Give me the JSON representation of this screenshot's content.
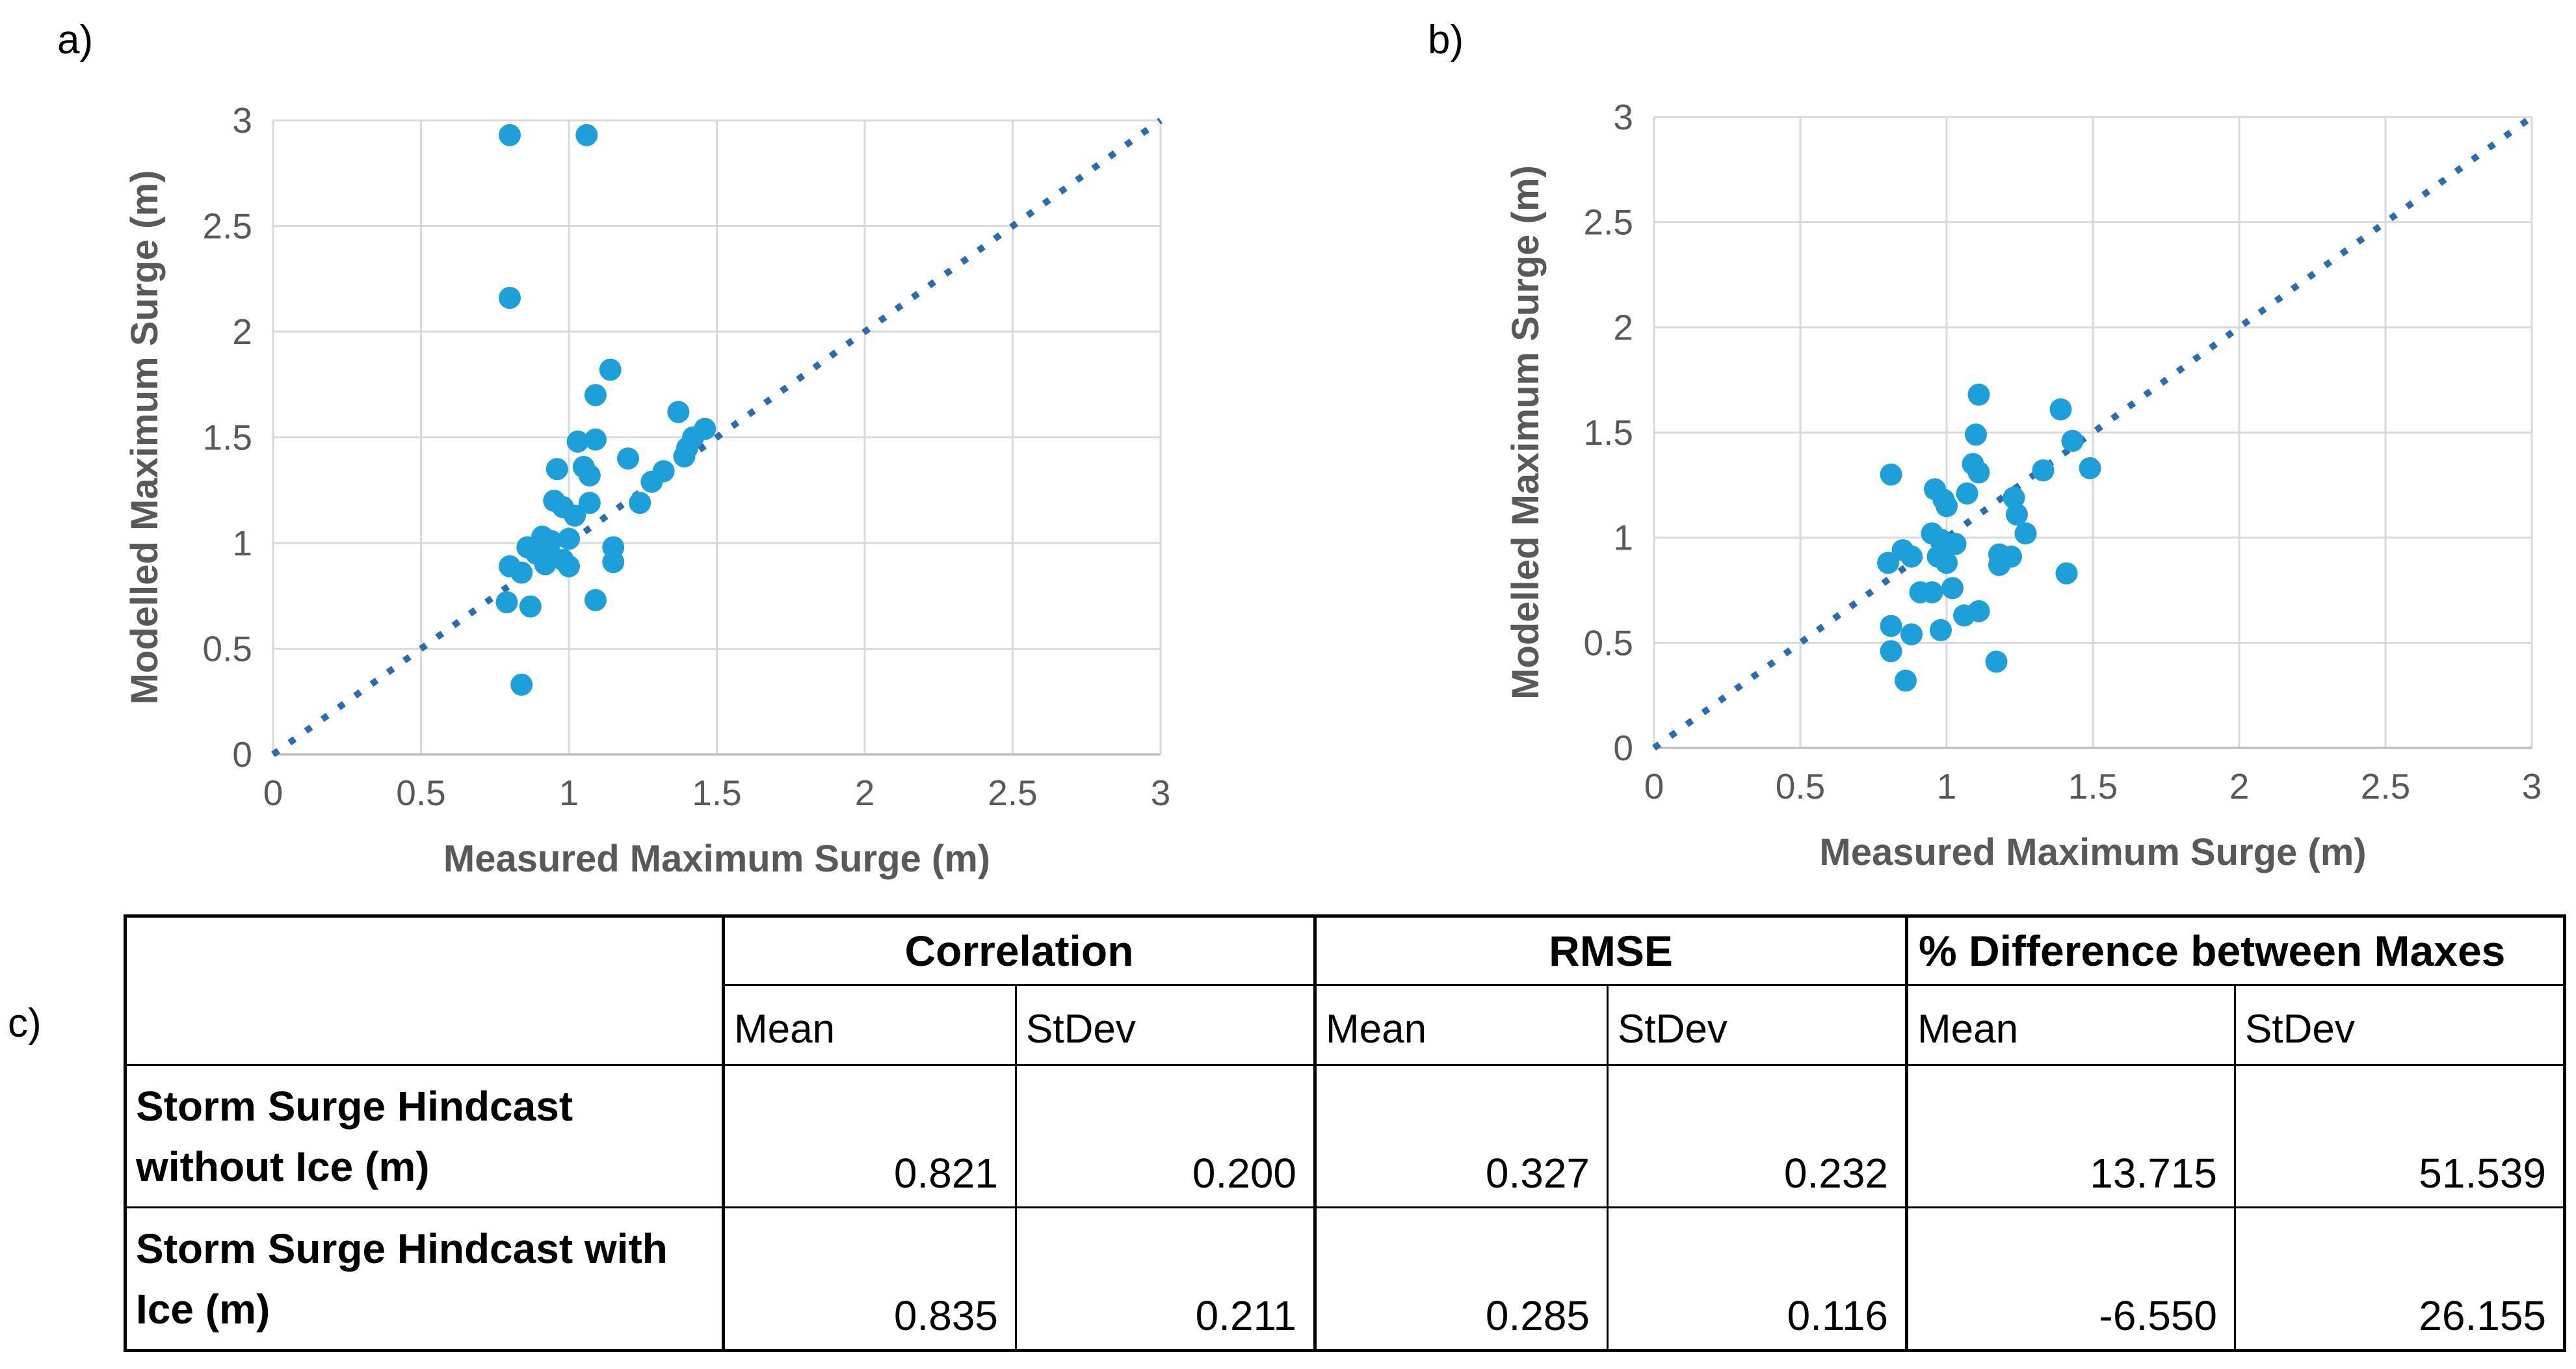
{
  "panels": {
    "a_label": "a)",
    "b_label": "b)",
    "c_label": "c)"
  },
  "chart_data": [
    {
      "id": "a",
      "type": "scatter",
      "title": "",
      "xlabel": "Measured Maximum Surge (m)",
      "ylabel": "Modelled Maximum Surge (m)",
      "xlim": [
        0,
        3
      ],
      "ylim": [
        0,
        3
      ],
      "xticks": [
        0,
        0.5,
        1,
        1.5,
        2,
        2.5,
        3
      ],
      "yticks": [
        0,
        0.5,
        1,
        1.5,
        2,
        2.5,
        3
      ],
      "xtick_labels": [
        "0",
        "0.5",
        "1",
        "1.5",
        "2",
        "2.5",
        "3"
      ],
      "ytick_labels": [
        "0",
        "0.5",
        "1",
        "1.5",
        "2",
        "2.5",
        "3"
      ],
      "grid": true,
      "grid_color": "#D9D9D9",
      "axis_color": "#BFBFBF",
      "marker_color": "#1D9FDA",
      "identity_line": {
        "from": [
          0,
          0
        ],
        "to": [
          3,
          3
        ],
        "style": "dotted",
        "color": "#2A6CB3"
      },
      "points": [
        [
          0.8,
          2.93
        ],
        [
          1.06,
          2.93
        ],
        [
          0.8,
          2.16
        ],
        [
          1.14,
          1.82
        ],
        [
          1.09,
          1.7
        ],
        [
          1.37,
          1.62
        ],
        [
          1.46,
          1.54
        ],
        [
          1.42,
          1.5
        ],
        [
          1.09,
          1.49
        ],
        [
          1.03,
          1.48
        ],
        [
          1.4,
          1.45
        ],
        [
          1.39,
          1.41
        ],
        [
          1.2,
          1.4
        ],
        [
          1.05,
          1.36
        ],
        [
          0.96,
          1.35
        ],
        [
          1.32,
          1.34
        ],
        [
          1.07,
          1.32
        ],
        [
          1.28,
          1.29
        ],
        [
          0.95,
          1.2
        ],
        [
          1.07,
          1.19
        ],
        [
          1.24,
          1.19
        ],
        [
          0.98,
          1.17
        ],
        [
          1.02,
          1.13
        ],
        [
          0.91,
          1.03
        ],
        [
          1.0,
          1.02
        ],
        [
          0.94,
          1.01
        ],
        [
          0.86,
          0.98
        ],
        [
          1.15,
          0.98
        ],
        [
          0.89,
          0.95
        ],
        [
          0.94,
          0.94
        ],
        [
          0.98,
          0.92
        ],
        [
          1.15,
          0.91
        ],
        [
          0.92,
          0.9
        ],
        [
          0.8,
          0.89
        ],
        [
          1.0,
          0.89
        ],
        [
          0.84,
          0.86
        ],
        [
          1.09,
          0.73
        ],
        [
          0.79,
          0.72
        ],
        [
          0.87,
          0.7
        ],
        [
          0.84,
          0.33
        ]
      ]
    },
    {
      "id": "b",
      "type": "scatter",
      "title": "",
      "xlabel": "Measured Maximum Surge (m)",
      "ylabel": "Modelled Maximum Surge (m)",
      "xlim": [
        0,
        3
      ],
      "ylim": [
        0,
        3
      ],
      "xticks": [
        0,
        0.5,
        1,
        1.5,
        2,
        2.5,
        3
      ],
      "yticks": [
        0,
        0.5,
        1,
        1.5,
        2,
        2.5,
        3
      ],
      "xtick_labels": [
        "0",
        "0.5",
        "1",
        "1.5",
        "2",
        "2.5",
        "3"
      ],
      "ytick_labels": [
        "0",
        "0.5",
        "1",
        "1.5",
        "2",
        "2.5",
        "3"
      ],
      "grid": true,
      "grid_color": "#D9D9D9",
      "axis_color": "#BFBFBF",
      "marker_color": "#1D9FDA",
      "identity_line": {
        "from": [
          0,
          0
        ],
        "to": [
          3,
          3
        ],
        "style": "dotted",
        "color": "#2A6CB3"
      },
      "points": [
        [
          1.11,
          1.68
        ],
        [
          1.39,
          1.61
        ],
        [
          1.1,
          1.49
        ],
        [
          1.43,
          1.46
        ],
        [
          1.33,
          1.32
        ],
        [
          1.49,
          1.33
        ],
        [
          1.09,
          1.35
        ],
        [
          1.11,
          1.31
        ],
        [
          0.81,
          1.3
        ],
        [
          1.23,
          1.19
        ],
        [
          1.24,
          1.11
        ],
        [
          0.96,
          1.23
        ],
        [
          0.99,
          1.18
        ],
        [
          1.07,
          1.21
        ],
        [
          1.0,
          1.15
        ],
        [
          1.27,
          1.02
        ],
        [
          0.95,
          1.02
        ],
        [
          0.98,
          0.99
        ],
        [
          1.03,
          0.97
        ],
        [
          0.85,
          0.94
        ],
        [
          0.88,
          0.91
        ],
        [
          0.97,
          0.91
        ],
        [
          1.18,
          0.92
        ],
        [
          1.22,
          0.91
        ],
        [
          1.18,
          0.87
        ],
        [
          0.8,
          0.88
        ],
        [
          1.0,
          0.88
        ],
        [
          1.41,
          0.83
        ],
        [
          1.02,
          0.76
        ],
        [
          0.91,
          0.74
        ],
        [
          0.95,
          0.74
        ],
        [
          1.11,
          0.65
        ],
        [
          1.06,
          0.63
        ],
        [
          0.81,
          0.58
        ],
        [
          0.98,
          0.56
        ],
        [
          0.88,
          0.54
        ],
        [
          0.81,
          0.46
        ],
        [
          1.17,
          0.41
        ],
        [
          0.86,
          0.32
        ]
      ]
    }
  ],
  "table": {
    "corner_label": "",
    "col_groups": [
      {
        "label": "Correlation"
      },
      {
        "label": "RMSE"
      },
      {
        "label": "% Difference between Maxes"
      }
    ],
    "sub_headers": [
      "Mean",
      "StDev",
      "Mean",
      "StDev",
      "Mean",
      "StDev"
    ],
    "rows": [
      {
        "label_line1": "Storm Surge Hindcast",
        "label_line2": "without Ice (m)",
        "values": [
          "0.821",
          "0.200",
          "0.327",
          "0.232",
          "13.715",
          "51.539"
        ]
      },
      {
        "label_line1": "Storm Surge Hindcast with",
        "label_line2": "Ice (m)",
        "values": [
          "0.835",
          "0.211",
          "0.285",
          "0.116",
          "-6.550",
          "26.155"
        ]
      }
    ]
  },
  "colors": {
    "marker": "#1D9FDA",
    "identity_line": "#2A6CB3",
    "gridline": "#D9D9D9",
    "axis_text": "#595959",
    "table_border": "#000000"
  }
}
